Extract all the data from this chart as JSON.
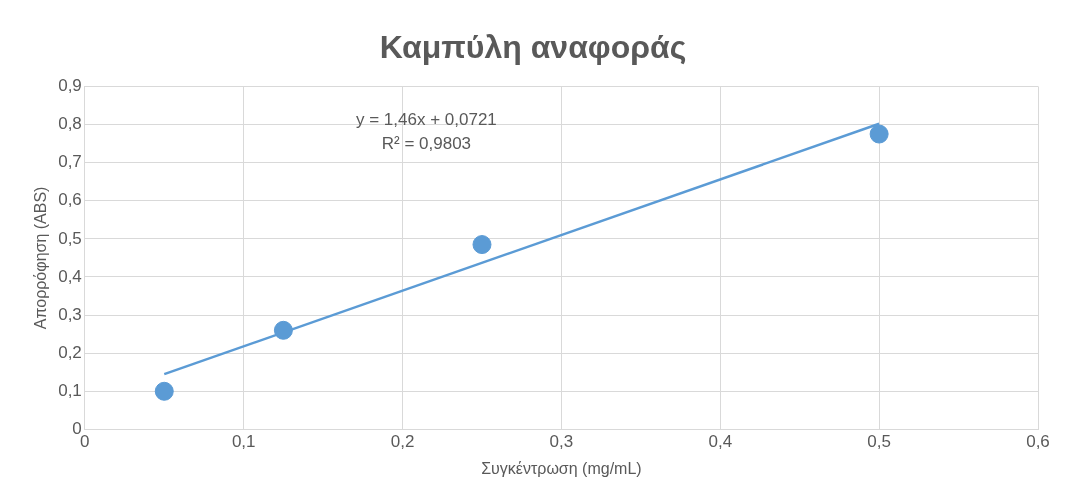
{
  "chart_data": {
    "type": "scatter",
    "title": "Καμπύλη αναφοράς",
    "xlabel": "Συγκέντρωση (mg/mL)",
    "ylabel": "Απορρόφηση (ABS)",
    "x": [
      0.05,
      0.125,
      0.25,
      0.5
    ],
    "series": [
      {
        "type": "scatter",
        "color": "#5b9bd5",
        "values": [
          0.1,
          0.26,
          0.485,
          0.775
        ]
      },
      {
        "type": "line",
        "color": "#5b9bd5",
        "x": [
          0.05,
          0.5
        ],
        "values": [
          0.145,
          0.802
        ],
        "marker": "none"
      }
    ],
    "annotations": [
      "y = 1,46x + 0,0721",
      "R² = 0,9803"
    ],
    "xlim": [
      0,
      0.6
    ],
    "xticks": [
      0,
      {
        "value": 0.1,
        "label": "0,1"
      },
      {
        "value": 0.2,
        "label": "0,2"
      },
      {
        "value": 0.3,
        "label": "0,3"
      },
      {
        "value": 0.4,
        "label": "0,4"
      },
      {
        "value": 0.5,
        "label": "0,5"
      },
      {
        "value": 0.6,
        "label": "0,6"
      }
    ],
    "ylim": [
      0,
      0.9
    ],
    "yticks": [
      0,
      {
        "value": 0.1,
        "label": "0,1"
      },
      {
        "value": 0.2,
        "label": "0,2"
      },
      {
        "value": 0.3,
        "label": "0,3"
      },
      {
        "value": 0.4,
        "label": "0,4"
      },
      {
        "value": 0.5,
        "label": "0,5"
      },
      {
        "value": 0.6,
        "label": "0,6"
      },
      {
        "value": 0.7,
        "label": "0,7"
      },
      {
        "value": 0.8,
        "label": "0,8"
      },
      {
        "value": 0.9,
        "label": "0,9"
      }
    ],
    "grid": true,
    "legend": false,
    "marker": "circle"
  }
}
